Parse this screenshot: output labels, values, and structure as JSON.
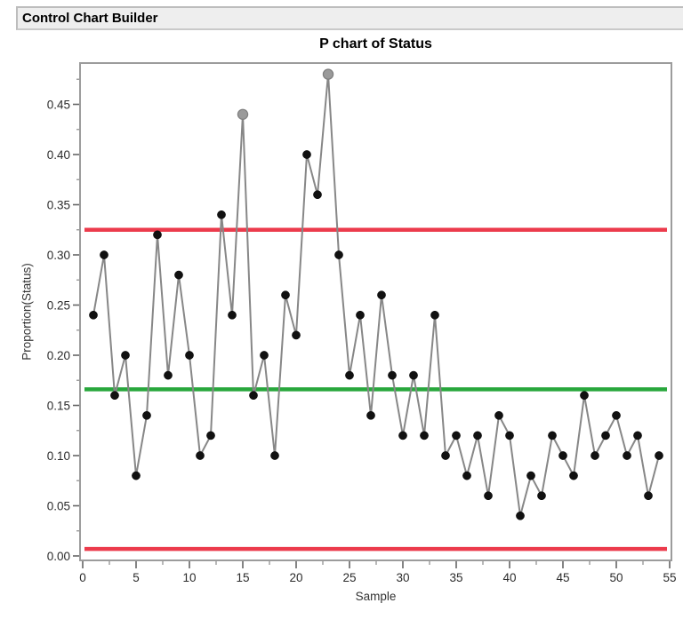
{
  "header": {
    "title": "Control Chart Builder"
  },
  "chart_data": {
    "type": "line",
    "subtype": "p-control-chart",
    "title": "P chart of Status",
    "xlabel": "Sample",
    "ylabel": "Proportion(Status)",
    "x_start_sample": 1,
    "values": [
      0.24,
      0.3,
      0.16,
      0.2,
      0.08,
      0.14,
      0.32,
      0.18,
      0.28,
      0.2,
      0.1,
      0.12,
      0.34,
      0.24,
      0.44,
      0.16,
      0.2,
      0.1,
      0.26,
      0.22,
      0.4,
      0.36,
      0.48,
      0.3,
      0.18,
      0.24,
      0.14,
      0.26,
      0.18,
      0.12,
      0.18,
      0.12,
      0.24,
      0.1,
      0.12,
      0.08,
      0.12,
      0.06,
      0.14,
      0.12,
      0.04,
      0.08,
      0.06,
      0.12,
      0.1,
      0.08,
      0.16,
      0.1,
      0.12,
      0.14,
      0.1,
      0.12,
      0.06,
      0.1
    ],
    "gray_point_samples": [
      15,
      23
    ],
    "limits": {
      "ucl": 0.325,
      "center": 0.166,
      "lcl": 0.007
    },
    "x_axis": {
      "min": 0,
      "max": 55,
      "tick_labels": [
        "0",
        "5",
        "10",
        "15",
        "20",
        "25",
        "30",
        "35",
        "40",
        "45",
        "50",
        "55"
      ],
      "tick_values": [
        0,
        5,
        10,
        15,
        20,
        25,
        30,
        35,
        40,
        45,
        50,
        55
      ],
      "minor_tick_values": [
        2.5,
        7.5,
        12.5,
        17.5,
        22.5,
        27.5,
        32.5,
        37.5,
        42.5,
        47.5,
        52.5
      ]
    },
    "y_axis": {
      "min": 0,
      "max": 0.49,
      "tick_labels": [
        "0.00",
        "0.05",
        "0.10",
        "0.15",
        "0.20",
        "0.25",
        "0.30",
        "0.35",
        "0.40",
        "0.45"
      ],
      "tick_values": [
        0.0,
        0.05,
        0.1,
        0.15,
        0.2,
        0.25,
        0.3,
        0.35,
        0.4,
        0.45
      ],
      "minor_tick_values": [
        0.025,
        0.075,
        0.125,
        0.175,
        0.225,
        0.275,
        0.325,
        0.375,
        0.425,
        0.475
      ]
    },
    "legend": "none",
    "grid": false,
    "colors": {
      "limit_line": "#EC3B4C",
      "center_line": "#28A73C",
      "series_line": "#878787",
      "marker": "#111111",
      "marker_gray": "#9A9A9A",
      "marker_gray_edge": "#7E7E7E",
      "frame": "#9C9C9C",
      "tick": "#666666",
      "tick_label": "#2B2B2B"
    }
  }
}
